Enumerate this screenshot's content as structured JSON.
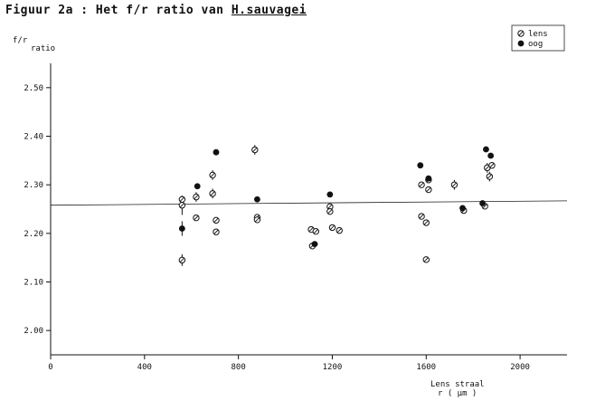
{
  "chart_data": {
    "type": "scatter",
    "title_prefix": "Figuur 2a : Het f/r ratio van ",
    "title_species": "H.sauvagei",
    "ylabel_line1": "f/r",
    "ylabel_line2": "ratio",
    "xlabel_line1": "Lens straal",
    "xlabel_line2": "r  ( μm )",
    "xlim": [
      0,
      2200
    ],
    "ylim": [
      1.95,
      2.55
    ],
    "xticks": [
      0,
      400,
      800,
      1200,
      1600,
      2000
    ],
    "xtick_labels": [
      "0",
      "400",
      "800",
      "1200",
      "1600",
      "2000"
    ],
    "yticks": [
      2.0,
      2.1,
      2.2,
      2.3,
      2.4,
      2.5
    ],
    "ytick_labels": [
      "2.00",
      "2.10",
      "2.20",
      "2.30",
      "2.40",
      "2.50"
    ],
    "reference_line": [
      [
        0,
        2.258
      ],
      [
        2200,
        2.267
      ]
    ],
    "legend_position": "top-right",
    "series": [
      {
        "name": "lens",
        "marker": "open-circle-slash",
        "points": [
          {
            "x": 560,
            "y": 2.145,
            "err": 0.012
          },
          {
            "x": 560,
            "y": 2.258,
            "err": 0.02
          },
          {
            "x": 560,
            "y": 2.27,
            "err": 0
          },
          {
            "x": 620,
            "y": 2.232,
            "err": 0
          },
          {
            "x": 620,
            "y": 2.275,
            "err": 0.01
          },
          {
            "x": 690,
            "y": 2.32,
            "err": 0.01
          },
          {
            "x": 690,
            "y": 2.282,
            "err": 0.01
          },
          {
            "x": 705,
            "y": 2.227,
            "err": 0
          },
          {
            "x": 705,
            "y": 2.203,
            "err": 0
          },
          {
            "x": 870,
            "y": 2.372,
            "err": 0.01
          },
          {
            "x": 880,
            "y": 2.233,
            "err": 0
          },
          {
            "x": 880,
            "y": 2.228,
            "err": 0
          },
          {
            "x": 1110,
            "y": 2.208,
            "err": 0
          },
          {
            "x": 1115,
            "y": 2.174,
            "err": 0
          },
          {
            "x": 1130,
            "y": 2.204,
            "err": 0
          },
          {
            "x": 1190,
            "y": 2.255,
            "err": 0
          },
          {
            "x": 1190,
            "y": 2.245,
            "err": 0
          },
          {
            "x": 1200,
            "y": 2.212,
            "err": 0
          },
          {
            "x": 1230,
            "y": 2.206,
            "err": 0
          },
          {
            "x": 1580,
            "y": 2.3,
            "err": 0
          },
          {
            "x": 1580,
            "y": 2.235,
            "err": 0
          },
          {
            "x": 1600,
            "y": 2.222,
            "err": 0
          },
          {
            "x": 1600,
            "y": 2.146,
            "err": 0
          },
          {
            "x": 1610,
            "y": 2.29,
            "err": 0
          },
          {
            "x": 1610,
            "y": 2.31,
            "err": 0
          },
          {
            "x": 1720,
            "y": 2.3,
            "err": 0.01
          },
          {
            "x": 1760,
            "y": 2.247,
            "err": 0
          },
          {
            "x": 1850,
            "y": 2.256,
            "err": 0
          },
          {
            "x": 1860,
            "y": 2.335,
            "err": 0.01
          },
          {
            "x": 1880,
            "y": 2.34,
            "err": 0
          },
          {
            "x": 1870,
            "y": 2.317,
            "err": 0.01
          }
        ]
      },
      {
        "name": "oog",
        "marker": "filled-circle",
        "points": [
          {
            "x": 560,
            "y": 2.21,
            "err": 0.015
          },
          {
            "x": 625,
            "y": 2.297,
            "err": 0
          },
          {
            "x": 705,
            "y": 2.367,
            "err": 0
          },
          {
            "x": 880,
            "y": 2.27,
            "err": 0
          },
          {
            "x": 1125,
            "y": 2.178,
            "err": 0
          },
          {
            "x": 1190,
            "y": 2.28,
            "err": 0
          },
          {
            "x": 1575,
            "y": 2.34,
            "err": 0
          },
          {
            "x": 1610,
            "y": 2.313,
            "err": 0
          },
          {
            "x": 1755,
            "y": 2.252,
            "err": 0
          },
          {
            "x": 1840,
            "y": 2.262,
            "err": 0
          },
          {
            "x": 1855,
            "y": 2.373,
            "err": 0
          },
          {
            "x": 1875,
            "y": 2.36,
            "err": 0
          }
        ]
      }
    ]
  }
}
